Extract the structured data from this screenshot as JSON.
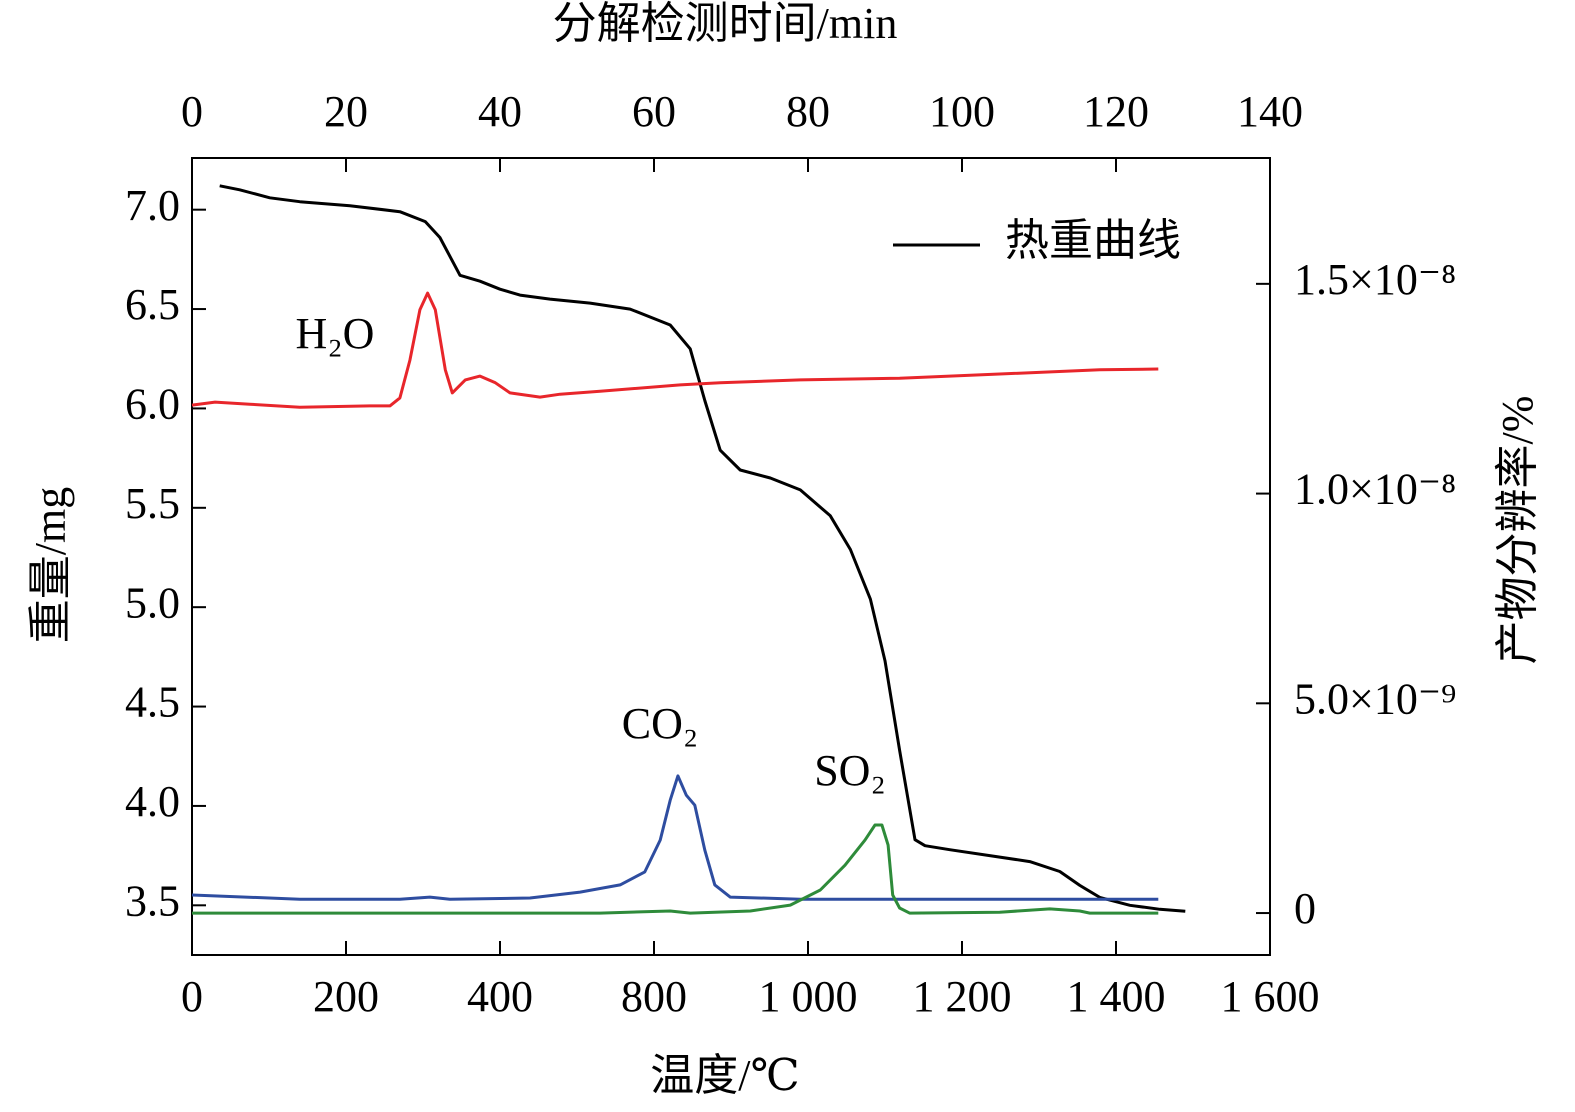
{
  "chart_data": {
    "type": "line",
    "title": "分解检测时间/min",
    "xlabel": "温度/℃",
    "ylabel": "重量/mg",
    "y2label": "产物分辨率/%",
    "xlim": [
      0,
      140
    ],
    "xticks": [
      0,
      20,
      40,
      60,
      80,
      100,
      120,
      140
    ],
    "x2ticks": [
      0,
      200,
      400,
      800,
      {
        "value": 1000,
        "label": "1 000"
      },
      {
        "value": 1200,
        "label": "1 200"
      },
      {
        "value": 1400,
        "label": "1 400"
      },
      {
        "value": 1600,
        "label": "1 600"
      }
    ],
    "ylim": [
      3.25,
      7.26
    ],
    "yticks": [
      {
        "value": 3.5,
        "label": "3.5"
      },
      {
        "value": 4.0,
        "label": "4.0"
      },
      {
        "value": 4.5,
        "label": "4.5"
      },
      {
        "value": 5.0,
        "label": "5.0"
      },
      {
        "value": 5.5,
        "label": "5.5"
      },
      {
        "value": 6.0,
        "label": "6.0"
      },
      {
        "value": 6.5,
        "label": "6.5"
      },
      {
        "value": 7.0,
        "label": "7.0"
      }
    ],
    "y2lim": [
      -1e-09,
      1.8e-08
    ],
    "y2ticks": [
      0,
      {
        "value": 5e-09,
        "label": "5.0×10⁻⁹"
      },
      {
        "value": 1e-08,
        "label": "1.0×10⁻⁸"
      },
      {
        "value": 1.5e-08,
        "label": "1.5×10⁻⁸"
      }
    ],
    "legend": "upper right",
    "series": [
      {
        "name": "热重曲线",
        "color": "#000000",
        "x": [
          3.6,
          6.2,
          10.1,
          14.0,
          20.5,
          27.0,
          30.3,
          32.2,
          34.8,
          37.4,
          40.0,
          42.6,
          46.5,
          51.7,
          56.9,
          62.1,
          64.7,
          66.6,
          68.6,
          71.2,
          75.1,
          79.0,
          82.9,
          85.5,
          88.1,
          90.0,
          91.9,
          93.9,
          95.2,
          98.4,
          103.6,
          108.8,
          112.7,
          115.3,
          117.9,
          121.8,
          125.7,
          129.0
        ],
        "values": [
          7.12,
          7.1,
          7.06,
          7.04,
          7.02,
          6.99,
          6.94,
          6.86,
          6.67,
          6.64,
          6.6,
          6.57,
          6.55,
          6.53,
          6.5,
          6.42,
          6.3,
          6.04,
          5.79,
          5.69,
          5.65,
          5.59,
          5.46,
          5.29,
          5.04,
          4.73,
          4.28,
          3.83,
          3.8,
          3.78,
          3.75,
          3.72,
          3.67,
          3.6,
          3.54,
          3.5,
          3.48,
          3.47
        ]
      },
      {
        "name": "H₂O",
        "color": "#e8262b",
        "axis": "y2",
        "x": [
          0,
          3.0,
          7.5,
          14.0,
          23.1,
          25.7,
          27.0,
          28.3,
          29.6,
          30.6,
          31.6,
          32.9,
          33.8,
          35.5,
          37.4,
          39.4,
          41.3,
          45.2,
          47.8,
          53.0,
          63.4,
          68.6,
          79.0,
          91.9,
          104.9,
          117.9,
          125.5
        ],
        "values": [
          1.211e-08,
          1.218e-08,
          1.213e-08,
          1.206e-08,
          1.209e-08,
          1.209e-08,
          1.228e-08,
          1.318e-08,
          1.438e-08,
          1.478e-08,
          1.438e-08,
          1.295e-08,
          1.24e-08,
          1.271e-08,
          1.28e-08,
          1.264e-08,
          1.24e-08,
          1.23e-08,
          1.237e-08,
          1.244e-08,
          1.259e-08,
          1.264e-08,
          1.271e-08,
          1.275e-08,
          1.285e-08,
          1.295e-08,
          1.297e-08
        ]
      },
      {
        "name": "CO₂",
        "color": "#2e4da0",
        "axis": "y2",
        "x": [
          0,
          14.0,
          27.0,
          30.9,
          33.5,
          43.9,
          50.4,
          55.6,
          58.8,
          60.8,
          62.1,
          63.1,
          64.2,
          65.3,
          66.6,
          67.9,
          69.9,
          79.0,
          104.9,
          125.5
        ],
        "values": [
          4.3e-10,
          3.3e-10,
          3.3e-10,
          3.8e-10,
          3.3e-10,
          3.6e-10,
          5e-10,
          6.7e-10,
          9.8e-10,
          1.74e-09,
          2.69e-09,
          3.27e-09,
          2.81e-09,
          2.57e-09,
          1.5e-09,
          6.7e-10,
          3.8e-10,
          3.3e-10,
          3.3e-10,
          3.3e-10
        ]
      },
      {
        "name": "SO₂",
        "color": "#2e8b3a",
        "axis": "y2",
        "x": [
          0,
          53.0,
          62.1,
          64.7,
          72.5,
          77.7,
          81.6,
          84.8,
          87.4,
          88.7,
          89.6,
          90.4,
          91.0,
          91.9,
          93.2,
          104.9,
          111.4,
          115.3,
          116.6,
          125.5
        ],
        "values": [
          0,
          0,
          5e-11,
          0,
          5e-11,
          1.9e-10,
          5.5e-10,
          1.14e-09,
          1.74e-09,
          2.1e-09,
          2.1e-09,
          1.62e-09,
          4.3e-10,
          1.2e-10,
          0,
          2e-11,
          1e-10,
          5e-11,
          0,
          0
        ]
      }
    ]
  }
}
